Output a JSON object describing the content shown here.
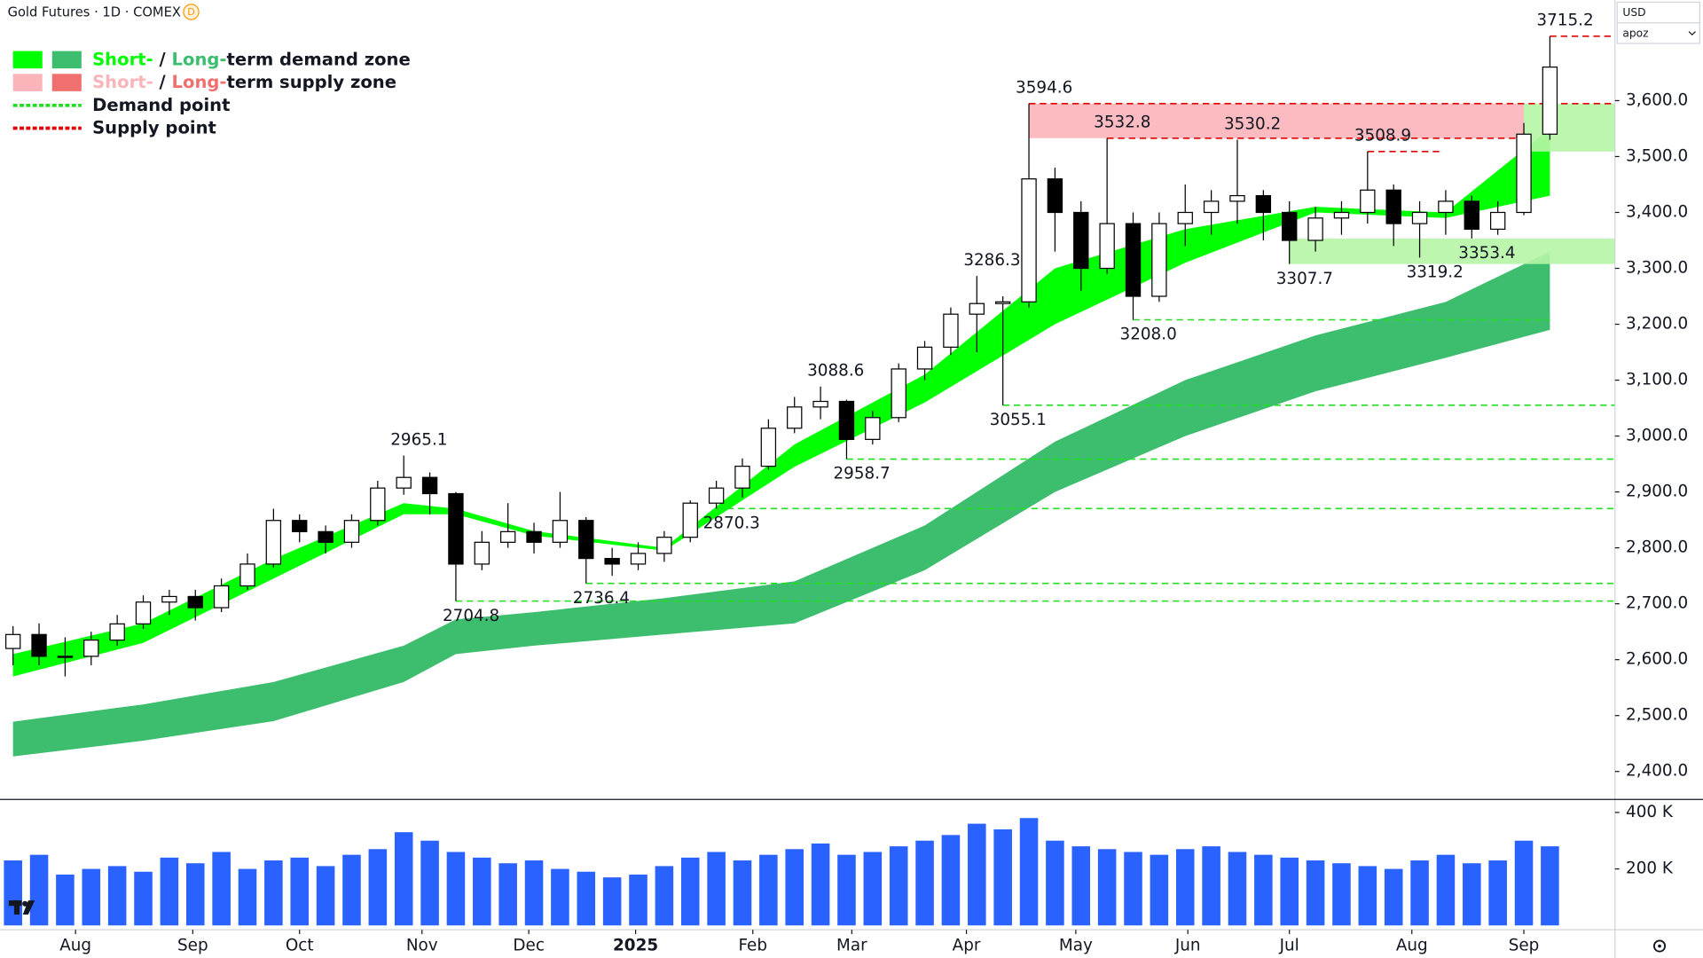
{
  "header": {
    "title": "Gold Futures · 1D · COMEX",
    "badge": "D",
    "currency": "USD",
    "scale_mode": "apoz"
  },
  "chart_data": {
    "type": "candlestick",
    "xlim": [
      -0.5,
      61.5
    ],
    "xticks": [
      {
        "value": 2.4,
        "label": "Aug"
      },
      {
        "value": 6.9,
        "label": "Sep"
      },
      {
        "value": 11.0,
        "label": "Oct"
      },
      {
        "value": 15.7,
        "label": "Nov"
      },
      {
        "value": 19.8,
        "label": "Dec"
      },
      {
        "value": 23.9,
        "label": "2025"
      },
      {
        "value": 28.4,
        "label": "Feb"
      },
      {
        "value": 32.2,
        "label": "Mar"
      },
      {
        "value": 36.6,
        "label": "Apr"
      },
      {
        "value": 40.8,
        "label": "May"
      },
      {
        "value": 45.1,
        "label": "Jun"
      },
      {
        "value": 49.0,
        "label": "Jul"
      },
      {
        "value": 53.7,
        "label": "Aug"
      },
      {
        "value": 58.0,
        "label": "Sep"
      }
    ],
    "ylim": [
      2350,
      3780
    ],
    "yticks": [
      {
        "value": 2400,
        "label": "2,400.0"
      },
      {
        "value": 2500,
        "label": "2,500.0"
      },
      {
        "value": 2600,
        "label": "2,600.0"
      },
      {
        "value": 2700,
        "label": "2,700.0"
      },
      {
        "value": 2800,
        "label": "2,800.0"
      },
      {
        "value": 2900,
        "label": "2,900.0"
      },
      {
        "value": 3000,
        "label": "3,000.0"
      },
      {
        "value": 3100,
        "label": "3,100.0"
      },
      {
        "value": 3200,
        "label": "3,200.0"
      },
      {
        "value": 3300,
        "label": "3,300.0"
      },
      {
        "value": 3400,
        "label": "3,400.0"
      },
      {
        "value": 3500,
        "label": "3,500.0"
      },
      {
        "value": 3600,
        "label": "3,600.0"
      }
    ],
    "open": [
      2620,
      2645,
      2606,
      2606,
      2635,
      2664,
      2703,
      2713,
      2693,
      2732,
      2771,
      2849,
      2829,
      2810,
      2849,
      2907,
      2926,
      2897,
      2771,
      2810,
      2829,
      2810,
      2849,
      2781,
      2771,
      2790,
      2819,
      2880,
      2907,
      2946,
      3014,
      3052,
      3062,
      2994,
      3033,
      3120,
      3159,
      3218,
      3237,
      3240,
      3460,
      3400,
      3300,
      3380,
      3250,
      3380,
      3400,
      3420,
      3430,
      3400,
      3350,
      3390,
      3400,
      3440,
      3380,
      3400,
      3420,
      3370,
      3400,
      3540
    ],
    "high": [
      2660,
      2665,
      2640,
      2650,
      2680,
      2715,
      2725,
      2725,
      2745,
      2790,
      2870,
      2860,
      2840,
      2860,
      2920,
      2965.1,
      2935,
      2900,
      2830,
      2880,
      2845,
      2900,
      2855,
      2800,
      2810,
      2830,
      2885,
      2920,
      2960,
      3030,
      3070,
      3088.6,
      3065,
      3045,
      3130,
      3170,
      3230,
      3286.3,
      3250,
      3594.6,
      3480,
      3420,
      3532.8,
      3400,
      3400,
      3450,
      3440,
      3530.2,
      3440,
      3420,
      3410,
      3420,
      3508.9,
      3450,
      3420,
      3440,
      3430,
      3420,
      3560,
      3715.2
    ],
    "low": [
      2590,
      2590,
      2570,
      2590,
      2625,
      2655,
      2680,
      2670,
      2685,
      2725,
      2765,
      2810,
      2790,
      2800,
      2840,
      2895,
      2860,
      2704.8,
      2760,
      2800,
      2790,
      2800,
      2736.4,
      2750,
      2760,
      2775,
      2810,
      2870.3,
      2890,
      2940,
      3005,
      3030,
      2958.7,
      2985,
      3025,
      3100,
      3145,
      3150,
      3055.1,
      3230,
      3330,
      3260,
      3290,
      3208.0,
      3240,
      3340,
      3360,
      3380,
      3350,
      3307.7,
      3330,
      3360,
      3380,
      3340,
      3319.2,
      3360,
      3353.4,
      3360,
      3395,
      3530
    ],
    "close": [
      2645,
      2606,
      2606,
      2635,
      2664,
      2703,
      2713,
      2693,
      2732,
      2771,
      2849,
      2829,
      2810,
      2849,
      2907,
      2926,
      2897,
      2771,
      2810,
      2829,
      2810,
      2849,
      2781,
      2771,
      2790,
      2819,
      2880,
      2907,
      2946,
      3014,
      3052,
      3062,
      2994,
      3033,
      3120,
      3159,
      3218,
      3237,
      3240,
      3460,
      3400,
      3300,
      3380,
      3250,
      3380,
      3400,
      3420,
      3430,
      3400,
      3350,
      3390,
      3400,
      3440,
      3380,
      3400,
      3420,
      3370,
      3400,
      3540,
      3660
    ],
    "up_color": "#ffffff",
    "down_color": "#000000",
    "bands": [
      {
        "color": "#3dbe6e",
        "x": [
          0,
          5,
          10,
          15,
          17,
          20,
          25,
          30,
          35,
          40,
          45,
          50,
          55,
          59
        ],
        "upper": [
          2489,
          2520,
          2560,
          2625,
          2672,
          2685,
          2710,
          2740,
          2840,
          2990,
          3100,
          3180,
          3240,
          3330
        ],
        "lower": [
          2427,
          2455,
          2490,
          2560,
          2610,
          2625,
          2645,
          2665,
          2760,
          2900,
          3000,
          3080,
          3140,
          3190
        ]
      },
      {
        "color": "#00ff00",
        "x": [
          0,
          5,
          10,
          15,
          17,
          20,
          25,
          30,
          35,
          40,
          45,
          50,
          55,
          59
        ],
        "upper": [
          2610,
          2665,
          2780,
          2880,
          2870,
          2830,
          2800,
          2985,
          3110,
          3300,
          3370,
          3410,
          3400,
          3550
        ],
        "lower": [
          2570,
          2630,
          2745,
          2860,
          2860,
          2822,
          2795,
          2945,
          3060,
          3200,
          3310,
          3400,
          3390,
          3430
        ]
      }
    ],
    "zones": [
      {
        "color": "#fbb4b9",
        "x": [
          39,
          58
        ],
        "range": [
          3532.8,
          3594.6
        ]
      },
      {
        "color": "#b6f5a6",
        "x": [
          58,
          61.5
        ],
        "range": [
          3508.9,
          3594.6
        ]
      },
      {
        "color": "#b6f5a6",
        "x": [
          49,
          61.5
        ],
        "range": [
          3307.7,
          3353.4
        ]
      }
    ],
    "pivots": [
      {
        "x": 15,
        "value": 2965.1,
        "kind": "supply"
      },
      {
        "x": 17,
        "value": 2704.8,
        "kind": "demand",
        "end": 61.5
      },
      {
        "x": 22,
        "value": 2736.4,
        "kind": "demand",
        "end": 61.5
      },
      {
        "x": 27,
        "value": 2870.3,
        "kind": "demand",
        "end": 61.5
      },
      {
        "x": 31,
        "value": 3088.6,
        "kind": "supply"
      },
      {
        "x": 32,
        "value": 2958.7,
        "kind": "demand",
        "end": 61.5
      },
      {
        "x": 37,
        "value": 3286.3,
        "kind": "supply"
      },
      {
        "x": 38,
        "value": 3055.1,
        "kind": "demand",
        "end": 61.5
      },
      {
        "x": 39,
        "value": 3594.6,
        "kind": "supply",
        "end": 61.5
      },
      {
        "x": 42,
        "value": 3532.8,
        "kind": "supply",
        "end": 58
      },
      {
        "x": 43,
        "value": 3208.0,
        "label": "3208.0",
        "kind": "demand",
        "end": 59
      },
      {
        "x": 47,
        "value": 3530.2,
        "kind": "supply"
      },
      {
        "x": 49,
        "value": 3307.7,
        "kind": "demand"
      },
      {
        "x": 52,
        "value": 3508.9,
        "kind": "supply",
        "end": 54.8
      },
      {
        "x": 54,
        "value": 3319.2,
        "kind": "demand"
      },
      {
        "x": 56,
        "value": 3353.4,
        "kind": "demand"
      },
      {
        "x": 59,
        "value": 3715.2,
        "kind": "supply",
        "end": 61.5
      }
    ],
    "demand_line_color": "#22dd22",
    "supply_line_color": "#e00000",
    "legend": [
      {
        "parts": [
          "Short-",
          " / ",
          "Long-",
          "term demand zone"
        ],
        "colors": [
          "#00ff00",
          "#3dbe6e"
        ]
      },
      {
        "parts": [
          "Short-",
          " / ",
          "Long-",
          "term supply zone"
        ],
        "colors": [
          "#fbb4b9",
          "#f07070"
        ]
      },
      {
        "parts": [
          "Demand point"
        ],
        "line_color": "#22dd22"
      },
      {
        "parts": [
          "Supply point"
        ],
        "line_color": "#e00000"
      }
    ],
    "volume": {
      "color": "#2962ff",
      "ylim": [
        0,
        446000
      ],
      "yticks": [
        {
          "value": 200000,
          "label": "200 K"
        },
        {
          "value": 400000,
          "label": "400 K"
        }
      ],
      "values": [
        230000,
        250000,
        180000,
        200000,
        210000,
        190000,
        240000,
        220000,
        260000,
        200000,
        230000,
        240000,
        210000,
        250000,
        270000,
        330000,
        300000,
        260000,
        240000,
        220000,
        230000,
        200000,
        190000,
        170000,
        180000,
        210000,
        240000,
        260000,
        230000,
        250000,
        270000,
        290000,
        250000,
        260000,
        280000,
        300000,
        320000,
        360000,
        340000,
        380000,
        300000,
        280000,
        270000,
        260000,
        250000,
        270000,
        280000,
        260000,
        250000,
        240000,
        230000,
        220000,
        210000,
        200000,
        230000,
        250000,
        220000,
        230000,
        300000,
        280000
      ]
    }
  }
}
